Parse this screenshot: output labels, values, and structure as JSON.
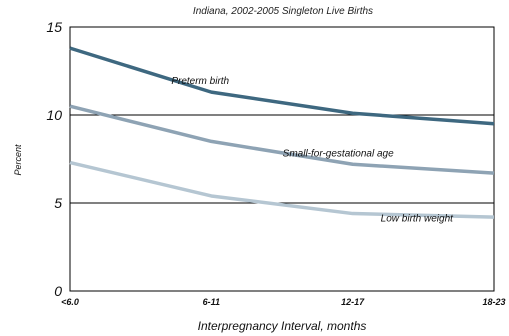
{
  "chart_data": {
    "type": "line",
    "title": "Indiana, 2002-2005 Singleton Live Births",
    "xlabel": "Interpregnancy Interval, months",
    "ylabel": "Percent",
    "categories": [
      "<6.0",
      "6-11",
      "12-17",
      "18-23"
    ],
    "ylim": [
      0,
      15
    ],
    "yticks": [
      0,
      5,
      10,
      15
    ],
    "grid": "horizontal",
    "series": [
      {
        "name": "Preterm birth",
        "values": [
          13.8,
          11.3,
          10.1,
          9.5
        ],
        "color": "#3e6880"
      },
      {
        "name": "Small-for-gestational age",
        "values": [
          10.5,
          8.5,
          7.2,
          6.7
        ],
        "color": "#8ea3b4"
      },
      {
        "name": "Low birth weight",
        "values": [
          7.3,
          5.4,
          4.4,
          4.2
        ],
        "color": "#b5c6d2"
      }
    ]
  }
}
